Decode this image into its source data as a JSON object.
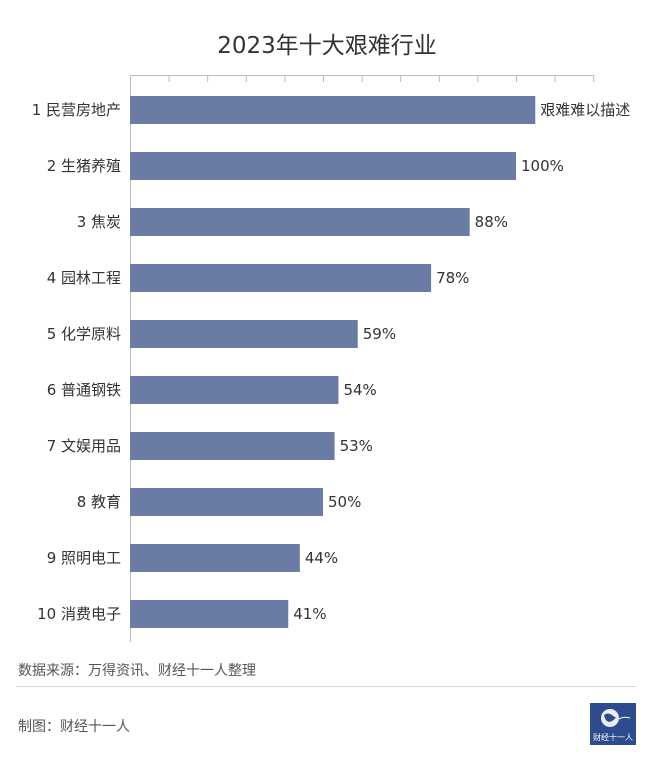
{
  "title": "2023年十大艰难行业",
  "source": "数据来源：万得资讯、财经十一人整理",
  "credit": "制图：财经十一人",
  "logo_text": "财经十一人",
  "colors": {
    "bar": "#6a7ba6",
    "axis": "#bbbbbb",
    "text": "#333333",
    "logo": "#2e4b8f"
  },
  "chart_data": {
    "type": "bar",
    "orientation": "horizontal",
    "title": "2023年十大艰难行业",
    "categories": [
      "1 民营房地产",
      "2 生猪养殖",
      "3 焦炭",
      "4 园林工程",
      "5 化学原料",
      "6 普通钢铁",
      "7 文娱用品",
      "8 教育",
      "9 照明电工",
      "10 消费电子"
    ],
    "values": [
      105,
      100,
      88,
      78,
      59,
      54,
      53,
      50,
      44,
      41
    ],
    "value_labels": [
      "艰难难以描述",
      "100%",
      "88%",
      "78%",
      "59%",
      "54%",
      "53%",
      "50%",
      "44%",
      "41%"
    ],
    "xlim": [
      0,
      120
    ],
    "x_ticks": [
      0,
      10,
      20,
      30,
      40,
      50,
      60,
      70,
      80,
      90,
      100,
      110,
      120
    ],
    "tick_labels_shown": false,
    "grid": false
  }
}
